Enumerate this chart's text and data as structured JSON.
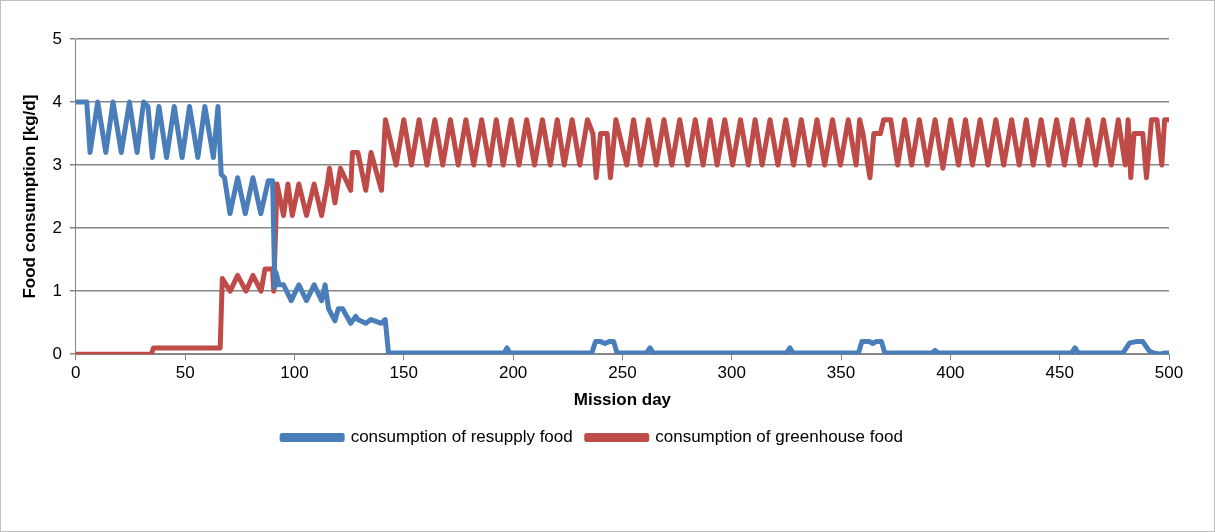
{
  "chart_data": {
    "type": "line",
    "xlabel": "Mission day",
    "ylabel": "Food consumption [kg/d]",
    "xlim": [
      0,
      500
    ],
    "xticks": [
      0,
      50,
      100,
      150,
      200,
      250,
      300,
      350,
      400,
      450,
      500
    ],
    "ylim": [
      0,
      5
    ],
    "yticks": [
      0,
      1,
      2,
      3,
      4,
      5
    ],
    "grid": "y",
    "legend": "bottom",
    "marker": "none",
    "line_style": "solid",
    "series": [
      {
        "name": "consumption of resupply food",
        "color": "#4a7ebb",
        "x": [
          0,
          5,
          6.5,
          10,
          13.7,
          17,
          20.8,
          24.5,
          28,
          31,
          33,
          35,
          38,
          41.5,
          45,
          48.6,
          52,
          55.8,
          59,
          62.9,
          65,
          66.5,
          68,
          70.5,
          74,
          77.5,
          81,
          84.6,
          88,
          90,
          91,
          91.5,
          93,
          95,
          98.5,
          102,
          105.5,
          109,
          112.4,
          114,
          115.6,
          118.5,
          120,
          122,
          125.7,
          128,
          129,
          132.6,
          135,
          139.8,
          141.5,
          143,
          145,
          196,
          197.2,
          198.5,
          236,
          237.7,
          240,
          242,
          244,
          246,
          247.5,
          261,
          262.6,
          264,
          325,
          326.6,
          328,
          358,
          359.5,
          363,
          364.5,
          366,
          368.5,
          370,
          391.5,
          393,
          394.5,
          455.5,
          457,
          458.5,
          479,
          482,
          485,
          488,
          491,
          493,
          496,
          498,
          500
        ],
        "values": [
          4.0,
          4.0,
          3.2,
          4.0,
          3.2,
          4.0,
          3.2,
          4.0,
          3.2,
          4.0,
          3.93,
          3.12,
          3.93,
          3.12,
          3.93,
          3.12,
          3.93,
          3.12,
          3.93,
          3.12,
          3.93,
          2.85,
          2.8,
          2.23,
          2.8,
          2.23,
          2.8,
          2.23,
          2.75,
          2.75,
          1.06,
          1.3,
          1.1,
          1.1,
          0.85,
          1.1,
          0.85,
          1.1,
          0.85,
          1.1,
          0.72,
          0.53,
          0.72,
          0.72,
          0.49,
          0.6,
          0.55,
          0.49,
          0.55,
          0.49,
          0.55,
          0.02,
          0.02,
          0.02,
          0.1,
          0.02,
          0.02,
          0.2,
          0.2,
          0.17,
          0.2,
          0.2,
          0.02,
          0.02,
          0.1,
          0.02,
          0.02,
          0.1,
          0.02,
          0.02,
          0.2,
          0.2,
          0.17,
          0.2,
          0.2,
          0.02,
          0.02,
          0.06,
          0.02,
          0.02,
          0.1,
          0.02,
          0.02,
          0.18,
          0.2,
          0.2,
          0.05,
          0.02,
          0.0,
          0.02,
          0.02
        ]
      },
      {
        "name": "consumption of greenhouse food",
        "color": "#be4b48",
        "x": [
          0,
          34.5,
          35.5,
          66,
          67,
          70.6,
          74,
          77.8,
          81,
          84.7,
          86.5,
          90,
          90.5,
          92,
          95,
          97,
          99,
          102,
          105.5,
          109,
          112.4,
          115,
          116,
          118.5,
          121,
          125.7,
          126.5,
          129,
          132.6,
          135,
          139.8,
          141.6,
          146.5,
          150,
          153.5,
          157,
          160.6,
          164.2,
          167.8,
          171.3,
          174.9,
          178.4,
          182,
          185.6,
          189.2,
          192.3,
          195.5,
          199.1,
          202.7,
          206.2,
          209.8,
          213.4,
          217,
          220.2,
          223.4,
          227,
          230.5,
          234,
          236.5,
          238,
          240,
          243,
          244.5,
          247,
          252,
          255.1,
          258.3,
          261.9,
          265.5,
          269,
          272.6,
          276.2,
          279.8,
          283.3,
          286.9,
          290.1,
          293.3,
          296.8,
          300.4,
          304,
          307.6,
          310.7,
          313.9,
          317.5,
          321.1,
          324.7,
          328.3,
          331.8,
          335.4,
          339,
          342.5,
          346.1,
          349.7,
          353.3,
          356.9,
          358.5,
          360,
          363.2,
          365,
          368,
          369.5,
          372.7,
          375.9,
          379.1,
          382.3,
          385.8,
          389.4,
          393,
          396.6,
          400.1,
          403.7,
          406.9,
          410.1,
          413.6,
          417.2,
          420.8,
          424.4,
          428,
          431.5,
          434.7,
          437.9,
          441.5,
          445,
          448.6,
          452.2,
          455.8,
          459.3,
          462.9,
          466.5,
          470,
          473.6,
          476.8,
          480,
          481.3,
          482.5,
          484,
          488,
          489.7,
          492,
          494.5,
          496.7,
          498,
          500
        ],
        "values": [
          0,
          0,
          0.1,
          0.1,
          1.2,
          1.0,
          1.25,
          1.0,
          1.25,
          1.0,
          1.35,
          1.35,
          1.0,
          2.7,
          2.2,
          2.7,
          2.2,
          2.7,
          2.2,
          2.7,
          2.2,
          2.7,
          2.95,
          2.4,
          2.95,
          2.6,
          3.2,
          3.2,
          2.6,
          3.2,
          2.6,
          3.72,
          3.0,
          3.72,
          3.0,
          3.72,
          3.0,
          3.72,
          3.0,
          3.72,
          3.0,
          3.72,
          3.0,
          3.72,
          3.0,
          3.72,
          3.0,
          3.72,
          3.0,
          3.72,
          3.0,
          3.72,
          3.0,
          3.72,
          3.0,
          3.72,
          3.0,
          3.72,
          3.5,
          2.8,
          3.5,
          3.5,
          2.8,
          3.72,
          3.0,
          3.72,
          3.0,
          3.72,
          3.0,
          3.72,
          3.0,
          3.72,
          3.0,
          3.72,
          3.0,
          3.72,
          3.0,
          3.72,
          3.0,
          3.72,
          3.0,
          3.72,
          3.0,
          3.72,
          3.0,
          3.72,
          3.0,
          3.72,
          3.0,
          3.72,
          3.0,
          3.72,
          3.0,
          3.72,
          3.0,
          3.72,
          3.5,
          2.8,
          3.5,
          3.5,
          3.72,
          3.72,
          3.0,
          3.72,
          3.0,
          3.72,
          3.0,
          3.72,
          2.95,
          3.72,
          3.0,
          3.72,
          3.0,
          3.72,
          3.0,
          3.72,
          3.0,
          3.72,
          3.0,
          3.72,
          3.0,
          3.72,
          3.0,
          3.72,
          3.0,
          3.72,
          3.0,
          3.72,
          3.0,
          3.72,
          3.0,
          3.72,
          3.0,
          3.72,
          2.8,
          3.5,
          3.5,
          2.8,
          3.72,
          3.72,
          3.0,
          3.72,
          3.72
        ]
      }
    ]
  }
}
